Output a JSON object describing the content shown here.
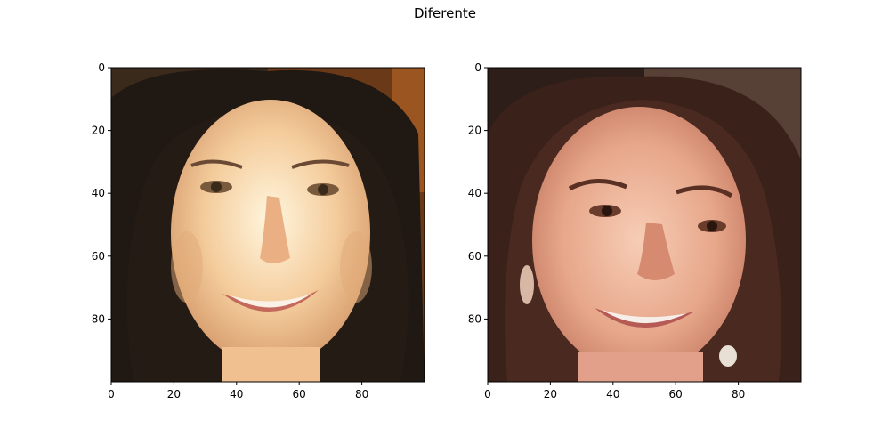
{
  "chart_data": {
    "type": "image_pair",
    "title": "Diferente",
    "panels": [
      {
        "image": "woman-smiling-dark-hair-photo",
        "xlim": [
          0,
          100
        ],
        "ylim": [
          100,
          0
        ],
        "xticks": [
          0,
          20,
          40,
          60,
          80
        ],
        "yticks": [
          0,
          20,
          40,
          60,
          80
        ],
        "palette": {
          "bg_left": "#3a2a1c",
          "bg_right": "#8a4a1a",
          "hair": "#1e1712",
          "skin": "#f2c79a",
          "skin_light": "#fff0d2",
          "lips": "#c86e62"
        }
      },
      {
        "image": "young-woman-smiling-brown-hair-photo",
        "xlim": [
          0,
          100
        ],
        "ylim": [
          100,
          0
        ],
        "xticks": [
          0,
          20,
          40,
          60,
          80
        ],
        "yticks": [
          0,
          20,
          40,
          60,
          80
        ],
        "palette": {
          "bg_left": "#2d1d18",
          "bg_right": "#5a4036",
          "hair": "#3a2119",
          "skin": "#e6a88c",
          "skin_light": "#f6c8b0",
          "lips": "#b95e58"
        }
      }
    ]
  }
}
